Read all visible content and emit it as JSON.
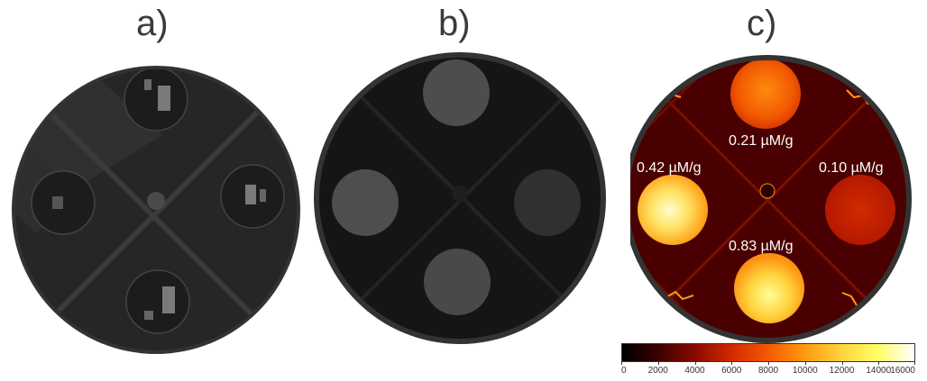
{
  "panels": [
    {
      "label": "a)"
    },
    {
      "label": "b)"
    },
    {
      "label": "c)"
    }
  ],
  "concentrations": {
    "top": "0.21 µM/g",
    "left": "0.42 µM/g",
    "right": "0.10 µM/g",
    "bottom": "0.83 µM/g"
  },
  "colorbar": {
    "min": 0,
    "max": 16000,
    "ticks": [
      "0",
      "2000",
      "4000",
      "6000",
      "8000",
      "10000",
      "12000",
      "14000",
      "16000"
    ],
    "colors": [
      "#000000",
      "#3c0000",
      "#8b0a00",
      "#d22a00",
      "#f55a00",
      "#ff9a10",
      "#ffd23c",
      "#ffff66",
      "#ffffff"
    ]
  },
  "colors": {
    "rim": "#333333",
    "panel_a_bg": "#222222",
    "panel_b_bg": "#141414",
    "panel_c_bg": "#4a0000"
  }
}
